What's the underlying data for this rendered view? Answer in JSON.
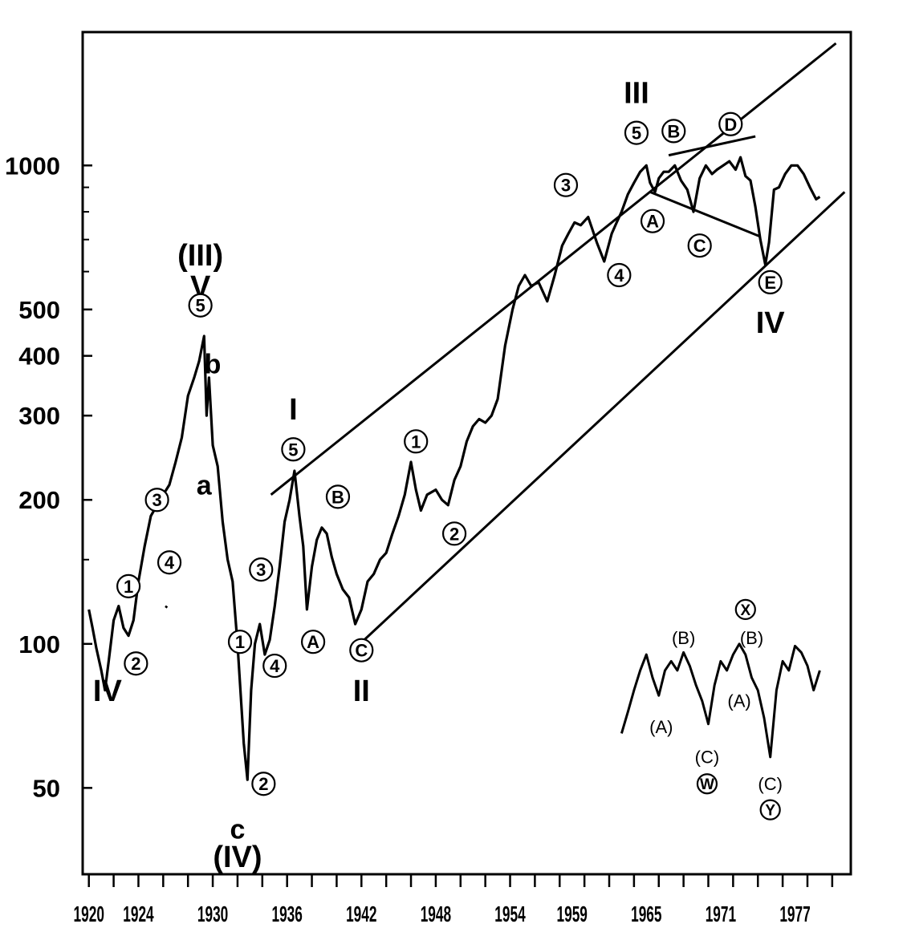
{
  "chart_data": {
    "type": "line",
    "title": "",
    "xlabel": "",
    "ylabel": "",
    "y_scale": "log",
    "xlim": [
      1919.5,
      1981.5
    ],
    "ylim": [
      33,
      1900
    ],
    "grid": false,
    "x_tick_labels": [
      "1920",
      "1924",
      "1930",
      "1936",
      "1942",
      "1948",
      "1954",
      "1959",
      "1965",
      "1971",
      "1977"
    ],
    "x_tick_values": [
      1920,
      1924,
      1930,
      1936,
      1942,
      1948,
      1954,
      1959,
      1965,
      1971,
      1977
    ],
    "y_tick_labels": [
      "1000",
      "500",
      "400",
      "300",
      "200",
      "100",
      "50"
    ],
    "y_tick_values": [
      1000,
      500,
      400,
      300,
      200,
      100,
      50
    ],
    "series": [
      {
        "x": [
          1920.0,
          1920.3,
          1920.6,
          1921.0,
          1921.3,
          1921.6,
          1922.0,
          1922.4,
          1922.8,
          1923.2,
          1923.6,
          1924.0,
          1924.5,
          1925.0,
          1925.5,
          1926.0,
          1926.5,
          1927.0,
          1927.5,
          1928.0,
          1928.5,
          1928.9,
          1929.3,
          1929.5,
          1929.7,
          1930.0,
          1930.4,
          1930.8,
          1931.2,
          1931.6,
          1932.0,
          1932.3,
          1932.5,
          1932.8,
          1933.1,
          1933.4,
          1933.8,
          1934.2,
          1934.6,
          1935.0,
          1935.4,
          1935.8,
          1936.2,
          1936.6,
          1937.0,
          1937.3,
          1937.6,
          1938.0,
          1938.4,
          1938.8,
          1939.2,
          1939.6,
          1940.0,
          1940.5,
          1941.0,
          1941.5,
          1942.0,
          1942.5,
          1943.0,
          1943.5,
          1944.0,
          1944.5,
          1945.0,
          1945.5,
          1946.0,
          1946.4,
          1946.8,
          1947.3,
          1948.0,
          1948.5,
          1949.0,
          1949.5,
          1950.0,
          1950.5,
          1951.0,
          1951.5,
          1952.0,
          1952.5,
          1953.0,
          1953.6,
          1954.2,
          1954.7,
          1955.2,
          1955.7,
          1956.3,
          1957.0,
          1957.6,
          1958.2,
          1958.7,
          1959.2,
          1959.7,
          1960.3,
          1961.0,
          1961.6,
          1962.2,
          1962.6,
          1963.0,
          1963.5,
          1964.0,
          1964.5,
          1965.0,
          1965.3,
          1965.7,
          1966.0,
          1966.4,
          1966.8,
          1967.3,
          1967.8,
          1968.3,
          1968.8,
          1969.3,
          1969.8,
          1970.3,
          1970.7,
          1971.2,
          1971.7,
          1972.2,
          1972.6,
          1973.0,
          1973.4,
          1973.8,
          1974.2,
          1974.6,
          1974.9,
          1975.3,
          1975.7,
          1976.2,
          1976.7,
          1977.2,
          1977.7,
          1978.2,
          1978.7,
          1979.0
        ],
        "values": [
          118,
          108,
          98,
          88,
          80,
          92,
          112,
          120,
          108,
          104,
          112,
          135,
          160,
          185,
          195,
          205,
          215,
          240,
          270,
          330,
          360,
          390,
          440,
          300,
          360,
          260,
          235,
          180,
          150,
          135,
          100,
          75,
          62,
          52,
          80,
          100,
          110,
          95,
          102,
          120,
          145,
          180,
          200,
          230,
          185,
          160,
          118,
          145,
          165,
          175,
          170,
          152,
          140,
          130,
          125,
          110,
          118,
          135,
          140,
          150,
          155,
          170,
          185,
          205,
          240,
          210,
          190,
          205,
          210,
          200,
          195,
          220,
          235,
          265,
          285,
          295,
          290,
          300,
          325,
          420,
          500,
          560,
          590,
          560,
          570,
          520,
          590,
          680,
          720,
          760,
          750,
          780,
          690,
          630,
          720,
          760,
          800,
          870,
          920,
          970,
          1000,
          920,
          880,
          940,
          970,
          970,
          1000,
          930,
          890,
          800,
          940,
          1000,
          960,
          980,
          1000,
          1020,
          980,
          1040,
          950,
          930,
          820,
          700,
          620,
          690,
          890,
          900,
          960,
          1000,
          1000,
          960,
          900,
          850,
          860
        ]
      }
    ],
    "wave_labels": [
      {
        "text": "IV",
        "x": 1921.5,
        "y": 80
      },
      {
        "text": "(III)",
        "x": 1929.0,
        "y": 650
      },
      {
        "text": "V",
        "x": 1929.0,
        "y": 560
      },
      {
        "text": "5",
        "x": 1929.0,
        "y": 510,
        "circled": true
      },
      {
        "text": "b",
        "x": 1930.0,
        "y": 385
      },
      {
        "text": "a",
        "x": 1929.3,
        "y": 215
      },
      {
        "text": "3",
        "x": 1925.5,
        "y": 200,
        "circled": true
      },
      {
        "text": "4",
        "x": 1926.5,
        "y": 148,
        "circled": true
      },
      {
        "text": "1",
        "x": 1923.2,
        "y": 132,
        "circled": true
      },
      {
        "text": "2",
        "x": 1923.8,
        "y": 91,
        "circled": true
      },
      {
        "text": "3",
        "x": 1933.9,
        "y": 143,
        "circled": true
      },
      {
        "text": "1",
        "x": 1932.2,
        "y": 101,
        "circled": true
      },
      {
        "text": "4",
        "x": 1935.0,
        "y": 90,
        "circled": true
      },
      {
        "text": "2",
        "x": 1934.1,
        "y": 51,
        "circled": true
      },
      {
        "text": "c",
        "x": 1932.0,
        "y": 41
      },
      {
        "text": "(IV)",
        "x": 1932.0,
        "y": 36
      },
      {
        "text": "I",
        "x": 1936.5,
        "y": 310
      },
      {
        "text": "5",
        "x": 1936.5,
        "y": 255,
        "circled": true
      },
      {
        "text": "B",
        "x": 1940.1,
        "y": 203,
        "circled": "upper"
      },
      {
        "text": "A",
        "x": 1938.1,
        "y": 101,
        "circled": "upper"
      },
      {
        "text": "C",
        "x": 1942.0,
        "y": 97,
        "circled": "upper"
      },
      {
        "text": "II",
        "x": 1942.0,
        "y": 80
      },
      {
        "text": "1",
        "x": 1946.4,
        "y": 265,
        "circled": true
      },
      {
        "text": "2",
        "x": 1949.5,
        "y": 170,
        "circled": true
      },
      {
        "text": "3",
        "x": 1958.5,
        "y": 910,
        "circled": true
      },
      {
        "text": "4",
        "x": 1962.8,
        "y": 590,
        "circled": true
      },
      {
        "text": "III",
        "x": 1964.2,
        "y": 1420
      },
      {
        "text": "5",
        "x": 1964.2,
        "y": 1170,
        "circled": true
      },
      {
        "text": "B",
        "x": 1967.2,
        "y": 1180,
        "circled": "upper"
      },
      {
        "text": "D",
        "x": 1971.8,
        "y": 1220,
        "circled": "upper"
      },
      {
        "text": "A",
        "x": 1965.5,
        "y": 765,
        "circled": "upper"
      },
      {
        "text": "C",
        "x": 1969.3,
        "y": 680,
        "circled": "upper"
      },
      {
        "text": "E",
        "x": 1975.0,
        "y": 570,
        "circled": "upper"
      },
      {
        "text": "IV",
        "x": 1975.0,
        "y": 470
      }
    ],
    "channels": [
      {
        "points": [
          [
            1934.7,
            205
          ],
          [
            1980.3,
            1800
          ]
        ]
      },
      {
        "points": [
          [
            1941.7,
            99
          ],
          [
            1981.0,
            880
          ]
        ]
      },
      {
        "points": [
          [
            1966.8,
            1050
          ],
          [
            1973.8,
            1150
          ]
        ]
      },
      {
        "points": [
          [
            1965.3,
            880
          ],
          [
            1974.2,
            710
          ]
        ]
      },
      {
        "points": [
          [
            1926.2,
            119
          ],
          [
            1926.3,
            120
          ]
        ]
      }
    ],
    "inset": {
      "labels": [
        {
          "text": "(B)",
          "x": 1968.0,
          "y": 103
        },
        {
          "text": "(A)",
          "x": 1966.2,
          "y": 67
        },
        {
          "text": "(C)",
          "x": 1969.9,
          "y": 58
        },
        {
          "text": "W",
          "x": 1969.9,
          "y": 51,
          "circled": true
        },
        {
          "text": "X",
          "x": 1973.0,
          "y": 118,
          "circled": true
        },
        {
          "text": "(B)",
          "x": 1973.5,
          "y": 103
        },
        {
          "text": "(A)",
          "x": 1972.5,
          "y": 76
        },
        {
          "text": "(C)",
          "x": 1975.0,
          "y": 51
        },
        {
          "text": "Y",
          "x": 1975.0,
          "y": 45,
          "circled": true
        }
      ],
      "series": {
        "x": [
          1963.0,
          1963.5,
          1964.0,
          1964.5,
          1965.0,
          1965.5,
          1966.0,
          1966.5,
          1967.0,
          1967.5,
          1968.0,
          1968.5,
          1969.0,
          1969.5,
          1970.0,
          1970.5,
          1971.0,
          1971.5,
          1972.0,
          1972.5,
          1973.0,
          1973.5,
          1974.0,
          1974.5,
          1975.0,
          1975.5,
          1976.0,
          1976.5,
          1977.0,
          1977.5,
          1978.0,
          1978.5,
          1979.0
        ],
        "values": [
          65,
          72,
          80,
          88,
          95,
          85,
          78,
          88,
          92,
          88,
          96,
          90,
          82,
          76,
          68,
          82,
          92,
          88,
          95,
          100,
          95,
          85,
          80,
          70,
          58,
          80,
          92,
          88,
          99,
          96,
          90,
          80,
          88
        ]
      }
    }
  }
}
